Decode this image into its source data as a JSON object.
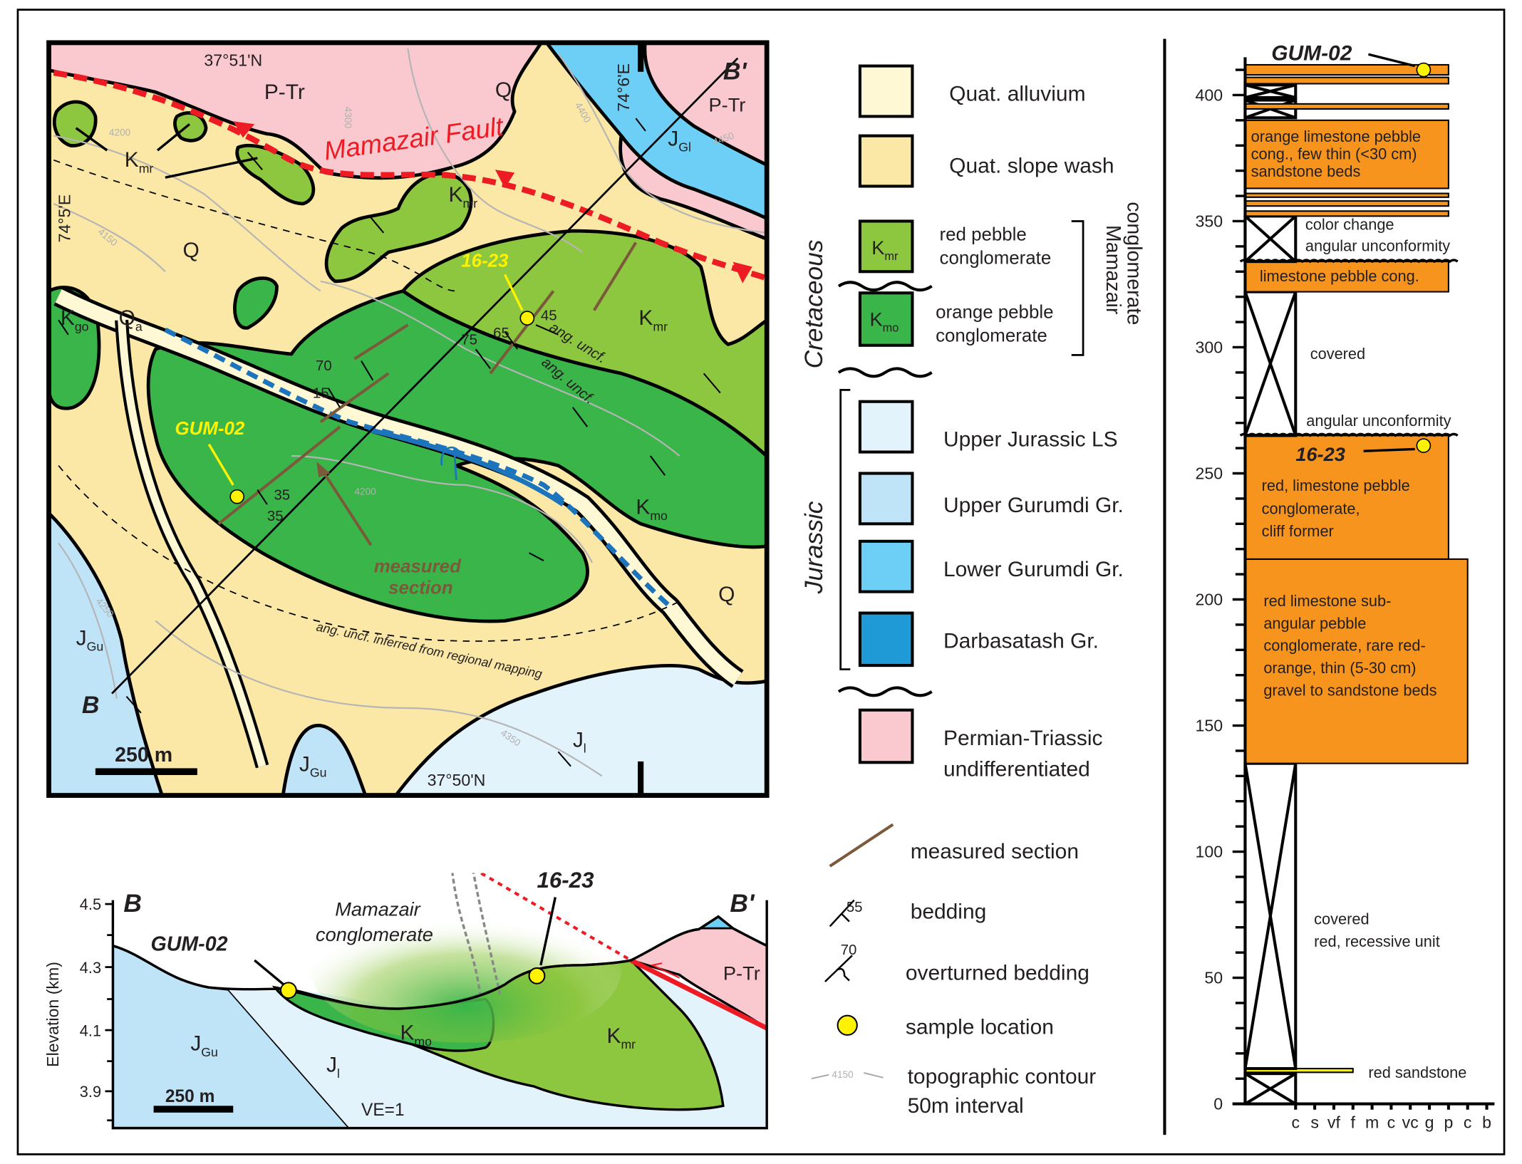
{
  "colors": {
    "quat_alluvium": "#fff8d4",
    "quat_slope_wash": "#fbe8a6",
    "k_mr": "#8dc63f",
    "k_mo": "#3ab54a",
    "upper_jurassic_ls": "#e2f3fc",
    "upper_gurumdi": "#bfe4f8",
    "lower_gurumdi": "#6dcff6",
    "darbasatash": "#1f9ad6",
    "permian_triassic": "#f9c9cf",
    "column_orange": "#f7941d",
    "fault_red": "#ed1c24",
    "fold_blue": "#1c75bc",
    "measured_section_brown": "#7b5a3c",
    "sample_yellow": "#fff200"
  },
  "map": {
    "lat_top": "37°51'N",
    "lat_bottom": "37°50'N",
    "lon_left": "74°5'E",
    "lon_right": "74°6'E",
    "fault_label": "Mamazair Fault",
    "units": {
      "ptr_1": "P-Tr",
      "ptr_2": "P-Tr",
      "q_1": "Q",
      "q_2": "Q",
      "q_3": "Q",
      "kmr_base": "K",
      "kmr_sub": "mr",
      "kmo_base": "K",
      "kmo_sub": "mo",
      "kgo_base": "K",
      "kgo_sub": "go",
      "qa_base": "Q",
      "qa_sub": "a",
      "jgl_base": "J",
      "jgl_sub": "Gl",
      "jgu_base": "J",
      "jgu_sub": "Gu",
      "jl_base": "J",
      "jl_sub": "l"
    },
    "samples": {
      "a": "16-23",
      "b": "GUM-02"
    },
    "dips": [
      "70",
      "15",
      "75",
      "65",
      "45",
      "35",
      "35"
    ],
    "ang_uncf": "ang. uncf.",
    "ang_uncf_inferred": "ang. uncf. inferred from regional mapping",
    "measured_section_1": "measured",
    "measured_section_2": "section",
    "scale": "250 m",
    "section_start": "B",
    "section_end": "B'",
    "contours": [
      "4200",
      "4300",
      "4150",
      "4200",
      "4250",
      "4350",
      "4400",
      "4450"
    ]
  },
  "legend": {
    "quat_alluvium": "Quat. alluvium",
    "quat_slope_wash": "Quat. slope wash",
    "cretaceous": "Cretaceous",
    "jurassic": "Jurassic",
    "kmr_label_1": "red pebble",
    "kmr_label_2": "conglomerate",
    "kmo_label_1": "orange pebble",
    "kmo_label_2": "conglomerate",
    "mamazair_1": "Mamazair",
    "mamazair_2": "conglomerate",
    "upper_jurassic_ls": "Upper Jurassic LS",
    "upper_gurumdi": "Upper Gurumdi Gr.",
    "lower_gurumdi": "Lower Gurumdi Gr.",
    "darbasatash": "Darbasatash Gr.",
    "ptr_1": "Permian-Triassic",
    "ptr_2": "undifferentiated",
    "measured_section": "measured section",
    "bedding": "bedding",
    "bedding_dip": "55",
    "overturned_bedding": "overturned bedding",
    "overturned_dip": "70",
    "sample_location": "sample location",
    "contour_1": "topographic contour",
    "contour_2": "50m interval",
    "contour_value": "4150"
  },
  "cross_section": {
    "start": "B",
    "end": "B'",
    "ylabel": "Elevation (km)",
    "yticks": [
      "4.5",
      "4.3",
      "4.1",
      "3.9"
    ],
    "sample_1": "GUM-02",
    "sample_2": "16-23",
    "mamazair_1": "Mamazair",
    "mamazair_2": "conglomerate",
    "ptr": "P-Tr",
    "scale": "250 m",
    "ve": "VE=1"
  },
  "column": {
    "yticks": [
      "0",
      "50",
      "100",
      "150",
      "200",
      "250",
      "300",
      "350",
      "400"
    ],
    "grain_sizes": [
      "c",
      "s",
      "vf",
      "f",
      "m",
      "c",
      "vc",
      "g",
      "p",
      "c",
      "b"
    ],
    "beds": [
      {
        "bottom": 0,
        "top": 12,
        "type": "covered"
      },
      {
        "bottom": 12.5,
        "top": 14,
        "type": "sandstone",
        "grain": 3
      },
      {
        "bottom": 14,
        "top": 135,
        "type": "covered"
      },
      {
        "bottom": 135,
        "top": 216,
        "type": "conglomerate",
        "grain": 9
      },
      {
        "bottom": 216,
        "top": 265,
        "type": "conglomerate",
        "grain": 8
      },
      {
        "bottom": 265,
        "top": 322,
        "type": "covered"
      },
      {
        "bottom": 322,
        "top": 334,
        "type": "conglomerate",
        "grain": 8
      },
      {
        "bottom": 334,
        "top": 352,
        "type": "covered"
      },
      {
        "bottom": 352,
        "top": 354,
        "type": "conglomerate",
        "grain": 8
      },
      {
        "bottom": 356,
        "top": 358,
        "type": "conglomerate",
        "grain": 8
      },
      {
        "bottom": 359.5,
        "top": 361,
        "type": "conglomerate",
        "grain": 8
      },
      {
        "bottom": 363,
        "top": 390,
        "type": "conglomerate",
        "grain": 8
      },
      {
        "bottom": 391,
        "top": 398,
        "type": "covered"
      },
      {
        "bottom": 394.5,
        "top": 396.5,
        "type": "conglomerate",
        "grain": 8
      },
      {
        "bottom": 399,
        "top": 404,
        "type": "covered"
      },
      {
        "bottom": 404.5,
        "top": 407,
        "type": "conglomerate",
        "grain": 8
      },
      {
        "bottom": 408,
        "top": 412,
        "type": "conglomerate",
        "grain": 8
      }
    ],
    "samples": [
      {
        "name": "GUM-02",
        "height": 410,
        "grain": 7
      },
      {
        "name": "16-23",
        "height": 261,
        "grain": 7
      }
    ],
    "notes": {
      "n1_1": "orange limestone pebble",
      "n1_2": "cong., few thin (<30 cm)",
      "n1_3": "sandstone beds",
      "n2_1": "color change",
      "n2_2": "angular unconformity",
      "n3": "limestone pebble cong.",
      "n4": "covered",
      "n5": "angular unconformity",
      "n6_1": "red, limestone pebble",
      "n6_2": "conglomerate,",
      "n6_3": "cliff former",
      "n7_1": "red limestone sub-",
      "n7_2": "angular pebble",
      "n7_3": "conglomerate, rare red-",
      "n7_4": "orange, thin (5-30 cm)",
      "n7_5": "gravel to sandstone beds",
      "n8_1": "covered",
      "n8_2": "red, recessive unit",
      "n9": "red sandstone"
    }
  }
}
